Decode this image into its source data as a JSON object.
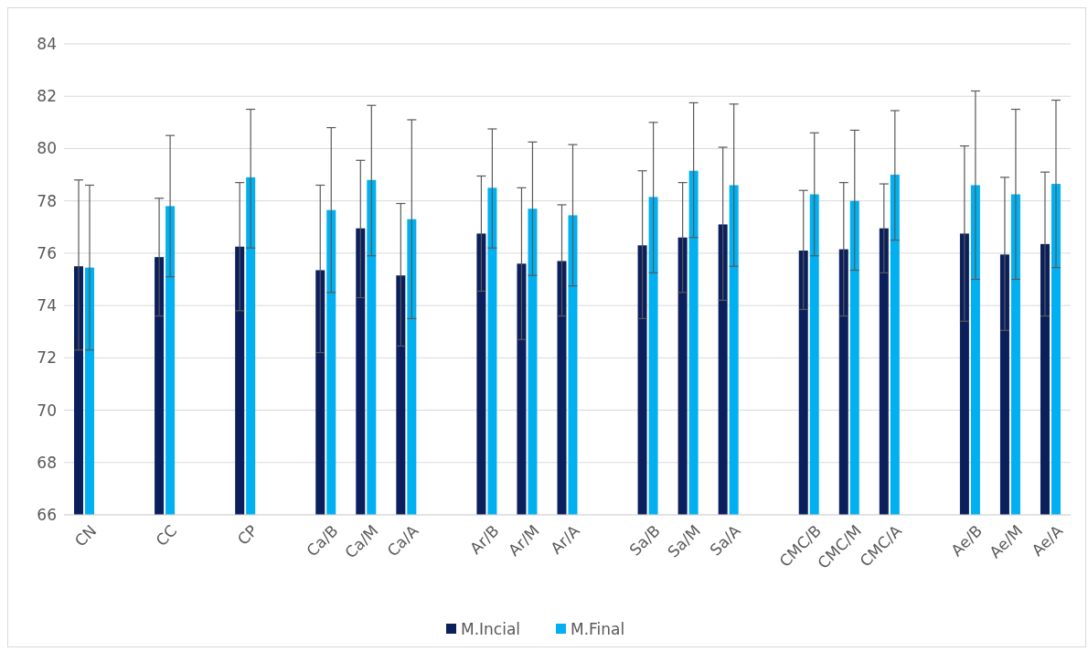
{
  "chart_data": {
    "type": "bar",
    "categories": [
      "CN",
      null,
      "CC",
      null,
      "CP",
      null,
      "Ca/B",
      "Ca/M",
      "Ca/A",
      null,
      "Ar/B",
      "Ar/M",
      "Ar/A",
      null,
      "Sa/B",
      "Sa/M",
      "Sa/A",
      null,
      "CMC/B",
      "CMC/M",
      "CMC/A",
      null,
      "Ae/B",
      "Ae/M",
      "Ae/A"
    ],
    "series": [
      {
        "name": "M.Incial",
        "color": "#0b1f5c",
        "values": [
          75.5,
          null,
          75.85,
          null,
          76.25,
          null,
          75.35,
          76.95,
          75.15,
          null,
          76.75,
          75.6,
          75.7,
          null,
          76.3,
          76.6,
          77.1,
          null,
          76.1,
          76.15,
          76.95,
          null,
          76.75,
          75.95,
          76.35
        ],
        "errors": [
          [
            72.3,
            78.8
          ],
          null,
          [
            73.6,
            78.1
          ],
          null,
          [
            73.8,
            78.7
          ],
          null,
          [
            72.2,
            78.6
          ],
          [
            74.3,
            79.55
          ],
          [
            72.45,
            77.9
          ],
          null,
          [
            74.55,
            78.95
          ],
          [
            72.7,
            78.5
          ],
          [
            73.6,
            77.85
          ],
          null,
          [
            73.5,
            79.15
          ],
          [
            74.5,
            78.7
          ],
          [
            74.2,
            80.05
          ],
          null,
          [
            73.85,
            78.4
          ],
          [
            73.6,
            78.7
          ],
          [
            75.25,
            78.65
          ],
          null,
          [
            73.4,
            80.1
          ],
          [
            73.05,
            78.9
          ],
          [
            73.6,
            79.1
          ]
        ]
      },
      {
        "name": "M.Final",
        "color": "#00b0f0",
        "values": [
          75.45,
          null,
          77.8,
          null,
          78.9,
          null,
          77.65,
          78.8,
          77.3,
          null,
          78.5,
          77.7,
          77.45,
          null,
          78.15,
          79.15,
          78.6,
          null,
          78.25,
          78.0,
          79.0,
          null,
          78.6,
          78.25,
          78.65
        ],
        "errors": [
          [
            72.3,
            78.6
          ],
          null,
          [
            75.1,
            80.5
          ],
          null,
          [
            76.2,
            81.5
          ],
          null,
          [
            74.5,
            80.8
          ],
          [
            75.9,
            81.65
          ],
          [
            73.5,
            81.1
          ],
          null,
          [
            76.2,
            80.75
          ],
          [
            75.15,
            80.25
          ],
          [
            74.75,
            80.15
          ],
          null,
          [
            75.25,
            81.0
          ],
          [
            76.6,
            81.75
          ],
          [
            75.5,
            81.7
          ],
          null,
          [
            75.9,
            80.6
          ],
          [
            75.35,
            80.7
          ],
          [
            76.5,
            81.45
          ],
          null,
          [
            75.0,
            82.2
          ],
          [
            75.0,
            81.5
          ],
          [
            75.45,
            81.85
          ]
        ]
      }
    ],
    "ylim": [
      66,
      84
    ],
    "yticks": [
      66,
      68,
      70,
      72,
      74,
      76,
      78,
      80,
      82,
      84
    ],
    "grid": "y",
    "legend": "bottom"
  }
}
